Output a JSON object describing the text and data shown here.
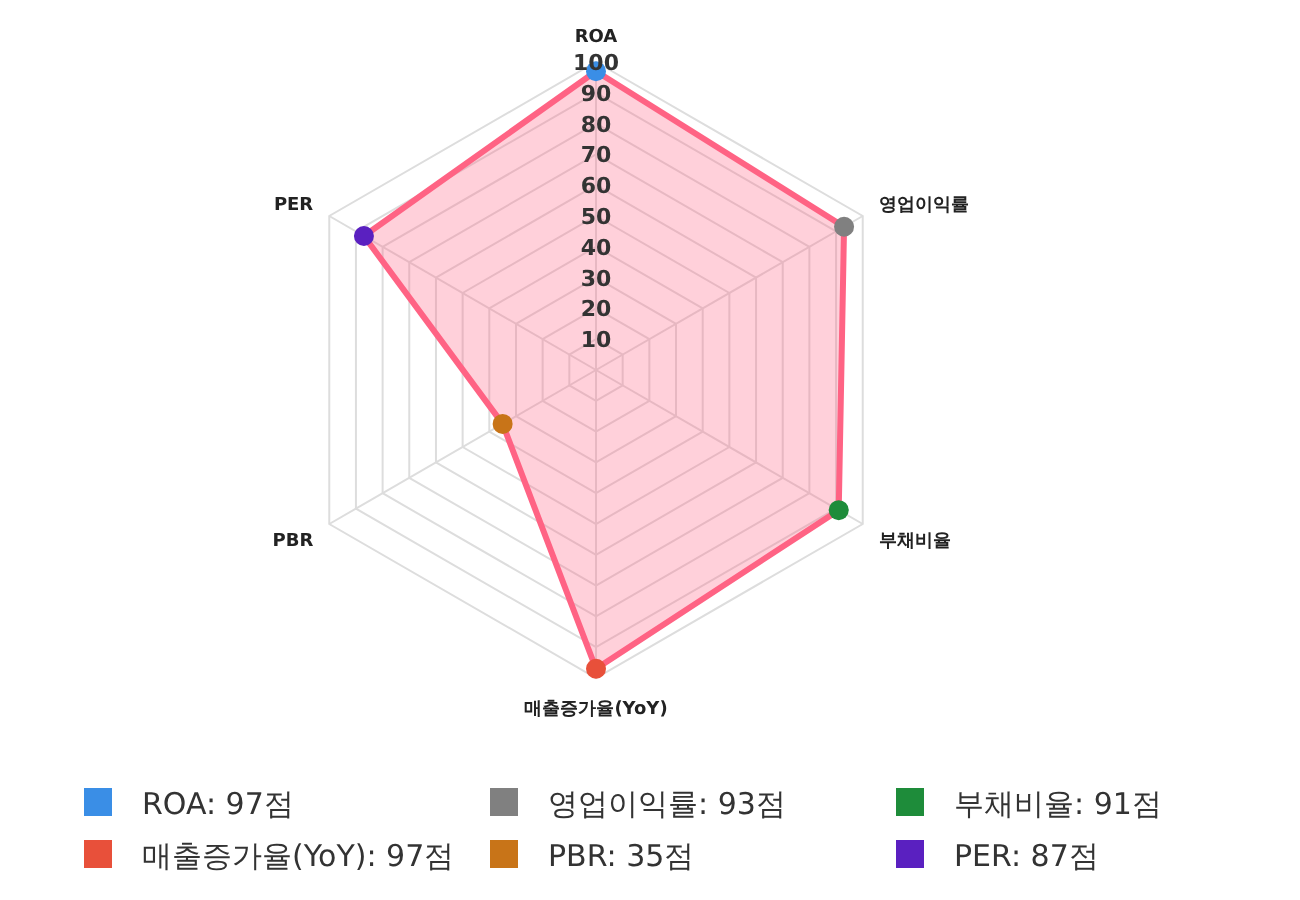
{
  "chart_data": {
    "type": "radar",
    "categories": [
      "ROA",
      "영업이익률",
      "부채비율",
      "매출증가율(YoY)",
      "PBR",
      "PER"
    ],
    "series": [
      {
        "color": "#ff6384",
        "values": [
          97,
          93,
          91,
          97,
          35,
          87
        ],
        "colors": [
          "#3a8ee6",
          "#808080",
          "#1e8c3a",
          "#e8503a",
          "#c87418",
          "#5a20c0"
        ]
      },
      {
        "name": "ROA: 97점",
        "color": "#3a8ee6",
        "values": [
          null,
          null,
          null,
          null,
          null,
          null
        ]
      },
      {
        "name": "영업이익률: 93점",
        "color": "#808080",
        "values": [
          null,
          null,
          null,
          null,
          null,
          null
        ]
      },
      {
        "name": "부채비율: 91점",
        "color": "#1e8c3a",
        "values": [
          null,
          null,
          null,
          null,
          null,
          null
        ]
      },
      {
        "name": "매출증가율(YoY): 97점",
        "color": "#e8503a",
        "values": [
          null,
          null,
          null,
          null,
          null,
          null
        ]
      },
      {
        "name": "PBR: 35점",
        "color": "#c87418",
        "values": [
          null,
          null,
          null,
          null,
          null,
          null
        ]
      },
      {
        "name": "PER: 87점",
        "color": "#5a20c0",
        "values": [
          null,
          null,
          null,
          null,
          null,
          null
        ]
      }
    ],
    "ylim": [
      0,
      100
    ],
    "yticks": [
      10,
      20,
      30,
      40,
      50,
      60,
      70,
      80,
      90,
      100
    ],
    "grid": true,
    "legend": "bottom",
    "marker": "circle"
  }
}
